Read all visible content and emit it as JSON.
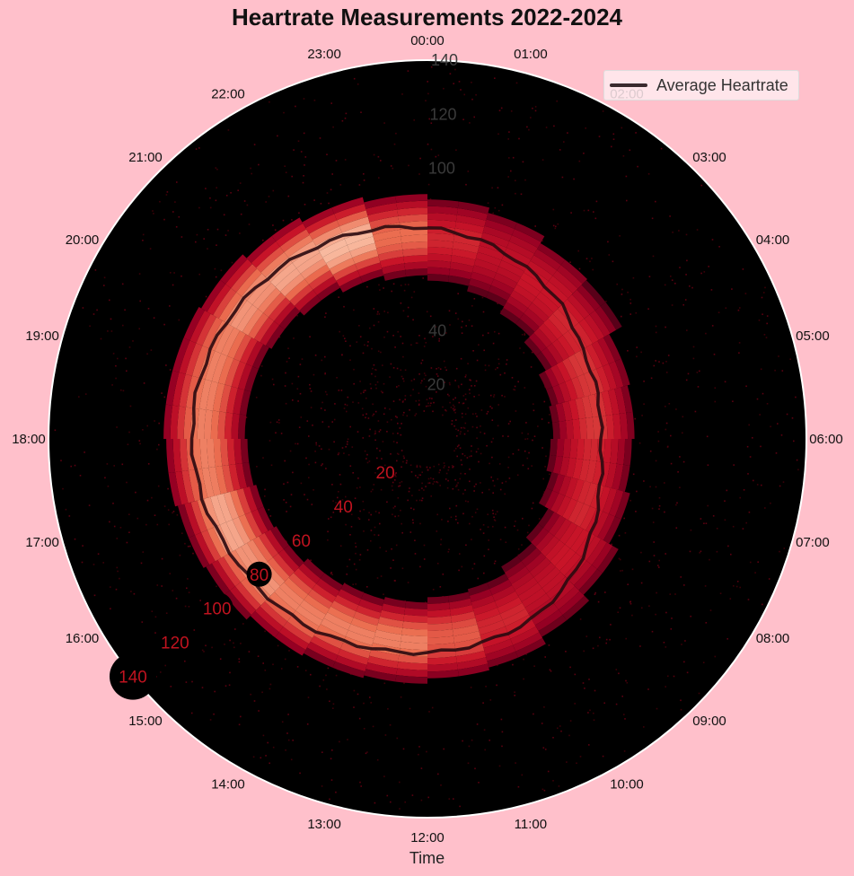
{
  "chart_data": {
    "type": "polar-heatmap",
    "title": "Heartrate Measurements 2022-2024",
    "xlabel": "Time",
    "theta_ticks": [
      "00:00",
      "01:00",
      "02:00",
      "03:00",
      "04:00",
      "05:00",
      "06:00",
      "07:00",
      "08:00",
      "09:00",
      "10:00",
      "11:00",
      "12:00",
      "13:00",
      "14:00",
      "15:00",
      "16:00",
      "17:00",
      "18:00",
      "19:00",
      "20:00",
      "21:00",
      "22:00",
      "23:00"
    ],
    "r_ticks_vertical": [
      20,
      40,
      100,
      120,
      140
    ],
    "r_ticks_diagonal": [
      20,
      40,
      60,
      80,
      100,
      120,
      140
    ],
    "rlim": [
      0,
      140
    ],
    "colormap": "Reds (dark to light)",
    "legend": {
      "placement": "top-right",
      "entries": [
        "Average Heartrate"
      ]
    },
    "series": [
      {
        "name": "Average Heartrate",
        "hours": [
          0,
          1,
          2,
          3,
          4,
          5,
          6,
          7,
          8,
          9,
          10,
          11,
          12,
          13,
          14,
          15,
          16,
          17,
          18,
          19,
          20,
          21,
          22,
          23
        ],
        "values": [
          78,
          76,
          73,
          70,
          66,
          65,
          64,
          66,
          70,
          74,
          77,
          78,
          79,
          80,
          82,
          83,
          84,
          86,
          87,
          87,
          86,
          84,
          82,
          80
        ]
      }
    ],
    "density_peak_band": {
      "hours": [
        0,
        1,
        2,
        3,
        4,
        5,
        6,
        7,
        8,
        9,
        10,
        11,
        12,
        13,
        14,
        15,
        16,
        17,
        18,
        19,
        20,
        21,
        22,
        23
      ],
      "inner": [
        68,
        66,
        63,
        60,
        57,
        56,
        55,
        57,
        61,
        64,
        67,
        68,
        70,
        71,
        72,
        74,
        75,
        76,
        77,
        77,
        76,
        74,
        72,
        70
      ],
      "outer": [
        80,
        79,
        76,
        73,
        69,
        68,
        67,
        69,
        73,
        76,
        79,
        80,
        81,
        82,
        84,
        85,
        86,
        88,
        89,
        89,
        88,
        86,
        84,
        82
      ],
      "peak_intensity": [
        0.55,
        0.45,
        0.5,
        0.55,
        0.6,
        0.6,
        0.55,
        0.55,
        0.5,
        0.45,
        0.55,
        0.7,
        0.8,
        0.8,
        0.8,
        0.85,
        0.9,
        0.8,
        0.8,
        0.8,
        0.85,
        0.9,
        0.95,
        0.75
      ]
    }
  }
}
